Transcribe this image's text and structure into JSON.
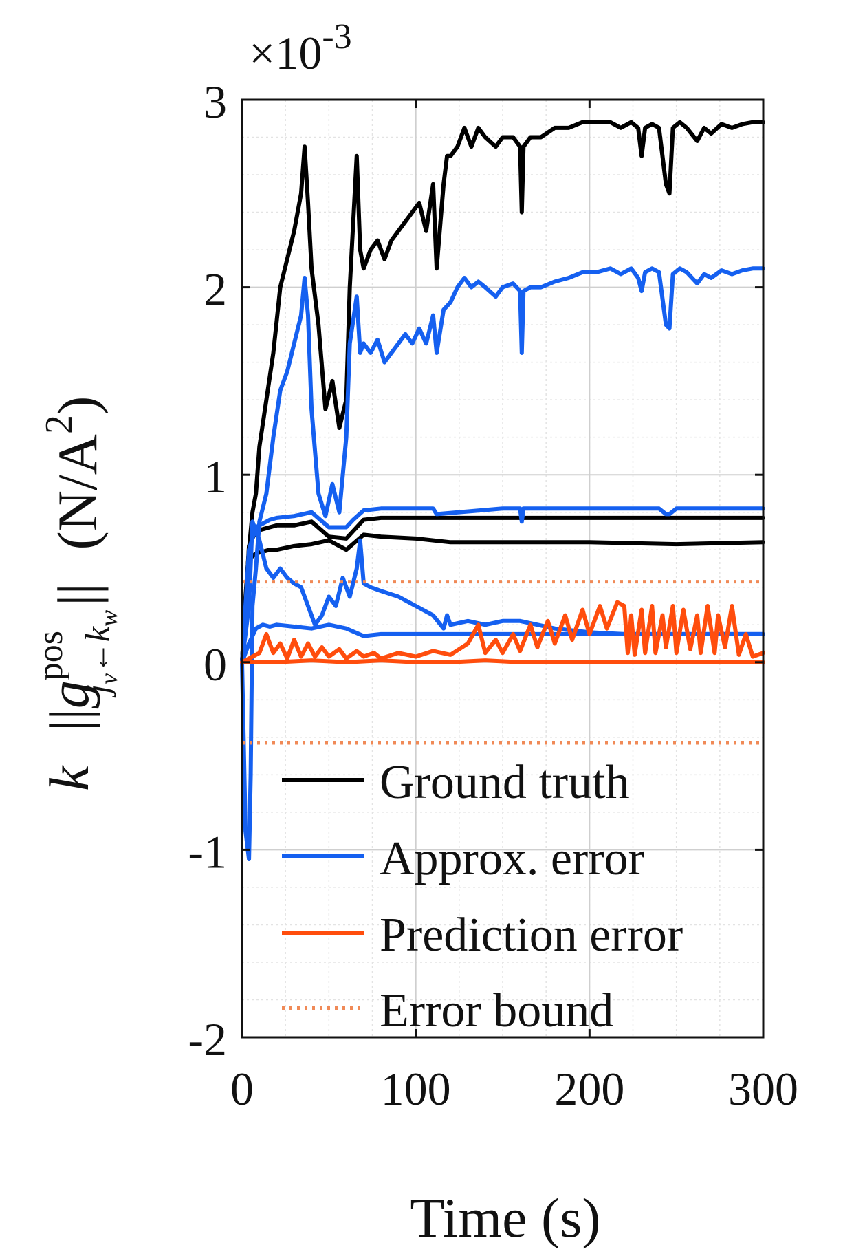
{
  "chart_data": {
    "type": "line",
    "title": "",
    "xlabel": "Time (s)",
    "ylabel_parts": {
      "k": "k",
      "bar_open": "||",
      "g": "g",
      "sup": "pos",
      "sub_j": "j",
      "sub_v": "v",
      "sub_arrow": "←",
      "sub_k": "k",
      "sub_w": "w",
      "bar_close": "||",
      "unit_open": "(N/A",
      "unit_sup": "2",
      "unit_close": ")"
    },
    "y_exponent": {
      "base": "×10",
      "power": "-3"
    },
    "xlim": [
      0,
      300
    ],
    "ylim": [
      -2,
      3
    ],
    "xticks": [
      0,
      100,
      200,
      300
    ],
    "yticks": [
      -2,
      -1,
      0,
      1,
      2,
      3
    ],
    "xtick_labels": [
      "0",
      "100",
      "200",
      "300"
    ],
    "ytick_labels": [
      "-2",
      "-1",
      "0",
      "1",
      "2",
      "3"
    ],
    "grid": true,
    "minor_grid": true,
    "legend_position": "bottom-right",
    "series": [
      {
        "name": "Ground truth",
        "color": "#000000",
        "style": "solid",
        "x": [
          0,
          2,
          4,
          6,
          8,
          10,
          14,
          18,
          22,
          26,
          30,
          34,
          36,
          38,
          40,
          44,
          48,
          52,
          56,
          60,
          62,
          66,
          68,
          70,
          74,
          78,
          82,
          86,
          90,
          94,
          98,
          102,
          106,
          110,
          112,
          116,
          118,
          120,
          124,
          128,
          132,
          136,
          140,
          146,
          150,
          156,
          160,
          161,
          162,
          166,
          172,
          180,
          188,
          196,
          204,
          212,
          218,
          224,
          228,
          230,
          232,
          236,
          240,
          244,
          246,
          248,
          252,
          256,
          262,
          266,
          270,
          276,
          282,
          288,
          294,
          300
        ],
        "y": [
          0.0,
          0.35,
          0.6,
          0.8,
          0.9,
          1.15,
          1.4,
          1.65,
          2.0,
          2.15,
          2.3,
          2.5,
          2.75,
          2.45,
          2.1,
          1.8,
          1.35,
          1.5,
          1.25,
          1.4,
          2.0,
          2.7,
          2.2,
          2.1,
          2.2,
          2.25,
          2.15,
          2.25,
          2.3,
          2.35,
          2.4,
          2.45,
          2.3,
          2.55,
          2.1,
          2.55,
          2.7,
          2.7,
          2.75,
          2.85,
          2.75,
          2.85,
          2.8,
          2.75,
          2.8,
          2.8,
          2.75,
          2.4,
          2.75,
          2.8,
          2.8,
          2.85,
          2.85,
          2.88,
          2.88,
          2.88,
          2.85,
          2.88,
          2.85,
          2.7,
          2.85,
          2.87,
          2.85,
          2.55,
          2.5,
          2.85,
          2.88,
          2.85,
          2.78,
          2.85,
          2.82,
          2.87,
          2.85,
          2.87,
          2.88,
          2.88
        ]
      },
      {
        "name": "",
        "color": "#000000",
        "style": "solid",
        "x": [
          0,
          4,
          8,
          12,
          16,
          20,
          30,
          40,
          50,
          60,
          64,
          70,
          80,
          100,
          150,
          200,
          250,
          300
        ],
        "y": [
          0.0,
          0.62,
          0.7,
          0.71,
          0.72,
          0.73,
          0.73,
          0.75,
          0.67,
          0.66,
          0.7,
          0.76,
          0.77,
          0.77,
          0.77,
          0.77,
          0.77,
          0.77
        ]
      },
      {
        "name": "",
        "color": "#000000",
        "style": "solid",
        "x": [
          0,
          4,
          8,
          12,
          16,
          20,
          30,
          40,
          50,
          60,
          70,
          80,
          100,
          120,
          150,
          200,
          250,
          300
        ],
        "y": [
          0.0,
          0.55,
          0.58,
          0.59,
          0.6,
          0.6,
          0.62,
          0.63,
          0.65,
          0.6,
          0.68,
          0.67,
          0.66,
          0.64,
          0.64,
          0.64,
          0.63,
          0.64
        ]
      },
      {
        "name": "Approx. error",
        "color": "#1560f0",
        "style": "solid",
        "x": [
          0,
          2,
          4,
          5,
          6,
          8,
          10,
          14,
          18,
          22,
          26,
          30,
          34,
          36,
          38,
          40,
          44,
          48,
          52,
          56,
          60,
          62,
          66,
          68,
          70,
          74,
          78,
          82,
          86,
          90,
          94,
          98,
          102,
          106,
          110,
          112,
          116,
          118,
          120,
          124,
          128,
          132,
          136,
          140,
          146,
          150,
          156,
          160,
          161,
          162,
          166,
          172,
          180,
          188,
          196,
          204,
          212,
          218,
          224,
          228,
          230,
          232,
          236,
          240,
          244,
          246,
          248,
          252,
          256,
          262,
          266,
          270,
          276,
          282,
          288,
          294,
          300
        ],
        "y": [
          0.0,
          -0.9,
          -1.05,
          -0.6,
          0.3,
          0.5,
          0.75,
          0.9,
          1.2,
          1.45,
          1.55,
          1.7,
          1.85,
          2.05,
          1.85,
          1.35,
          0.9,
          0.78,
          0.95,
          0.8,
          1.2,
          1.7,
          1.95,
          1.65,
          1.7,
          1.65,
          1.72,
          1.6,
          1.65,
          1.7,
          1.75,
          1.7,
          1.78,
          1.7,
          1.85,
          1.65,
          1.88,
          1.9,
          1.92,
          2.0,
          2.05,
          2.0,
          2.03,
          2.0,
          1.95,
          2.0,
          2.02,
          1.98,
          1.65,
          1.98,
          2.0,
          2.0,
          2.03,
          2.05,
          2.08,
          2.08,
          2.1,
          2.07,
          2.1,
          2.05,
          1.98,
          2.08,
          2.1,
          2.08,
          1.8,
          1.78,
          2.07,
          2.1,
          2.08,
          2.02,
          2.07,
          2.05,
          2.09,
          2.07,
          2.09,
          2.1,
          2.1
        ]
      },
      {
        "name": "",
        "color": "#1560f0",
        "style": "solid",
        "x": [
          0,
          4,
          8,
          12,
          16,
          20,
          30,
          40,
          50,
          60,
          64,
          70,
          80,
          100,
          110,
          112,
          150,
          160,
          161,
          162,
          200,
          230,
          240,
          244,
          246,
          250,
          300
        ],
        "y": [
          0.0,
          0.6,
          0.72,
          0.74,
          0.76,
          0.77,
          0.78,
          0.8,
          0.72,
          0.72,
          0.76,
          0.81,
          0.82,
          0.82,
          0.82,
          0.79,
          0.82,
          0.82,
          0.75,
          0.82,
          0.82,
          0.82,
          0.82,
          0.79,
          0.79,
          0.82,
          0.82
        ]
      },
      {
        "name": "",
        "color": "#1560f0",
        "style": "solid",
        "x": [
          0,
          4,
          6,
          10,
          14,
          18,
          22,
          26,
          30,
          34,
          38,
          42,
          46,
          50,
          54,
          58,
          62,
          66,
          68,
          70,
          74,
          80,
          90,
          100,
          110,
          116,
          118,
          120,
          130,
          140,
          150,
          160,
          180,
          200,
          220,
          240,
          260,
          280,
          300
        ],
        "y": [
          0.0,
          0.3,
          0.75,
          0.65,
          0.5,
          0.45,
          0.5,
          0.45,
          0.42,
          0.4,
          0.3,
          0.2,
          0.25,
          0.35,
          0.3,
          0.45,
          0.35,
          0.5,
          0.65,
          0.42,
          0.4,
          0.38,
          0.35,
          0.3,
          0.25,
          0.18,
          0.25,
          0.2,
          0.22,
          0.2,
          0.22,
          0.22,
          0.18,
          0.16,
          0.15,
          0.15,
          0.15,
          0.15,
          0.15
        ]
      },
      {
        "name": "",
        "color": "#1560f0",
        "style": "solid",
        "x": [
          0,
          4,
          8,
          12,
          16,
          20,
          30,
          40,
          50,
          60,
          70,
          80,
          100,
          150,
          200,
          250,
          300
        ],
        "y": [
          0.0,
          0.1,
          0.18,
          0.2,
          0.19,
          0.2,
          0.19,
          0.18,
          0.2,
          0.18,
          0.14,
          0.15,
          0.15,
          0.15,
          0.15,
          0.15,
          0.15
        ]
      },
      {
        "name": "Prediction error",
        "color": "#ff4d0d",
        "style": "solid",
        "x": [
          0,
          10,
          14,
          18,
          22,
          26,
          30,
          34,
          38,
          42,
          46,
          50,
          56,
          60,
          66,
          70,
          76,
          80,
          90,
          100,
          110,
          120,
          130,
          136,
          140,
          146,
          150,
          156,
          160,
          166,
          170,
          176,
          180,
          186,
          190,
          196,
          200,
          206,
          210,
          216,
          220,
          222,
          224,
          226,
          230,
          232,
          236,
          238,
          242,
          244,
          248,
          250,
          254,
          258,
          262,
          264,
          268,
          272,
          274,
          278,
          282,
          286,
          290,
          294,
          300
        ],
        "y": [
          0.0,
          0.05,
          0.15,
          0.05,
          0.1,
          0.02,
          0.12,
          0.03,
          0.1,
          0.03,
          0.08,
          0.03,
          0.07,
          0.02,
          0.06,
          0.03,
          0.05,
          0.02,
          0.05,
          0.03,
          0.06,
          0.04,
          0.1,
          0.2,
          0.05,
          0.12,
          0.05,
          0.15,
          0.06,
          0.2,
          0.08,
          0.22,
          0.1,
          0.25,
          0.12,
          0.28,
          0.15,
          0.3,
          0.18,
          0.32,
          0.3,
          0.05,
          0.25,
          0.04,
          0.28,
          0.05,
          0.3,
          0.05,
          0.25,
          0.08,
          0.3,
          0.05,
          0.28,
          0.07,
          0.25,
          0.05,
          0.3,
          0.05,
          0.25,
          0.08,
          0.3,
          0.04,
          0.15,
          0.03,
          0.05
        ]
      },
      {
        "name": "",
        "color": "#ff4d0d",
        "style": "solid",
        "x": [
          0,
          20,
          40,
          60,
          80,
          100,
          120,
          140,
          160,
          180,
          200,
          220,
          240,
          260,
          280,
          300
        ],
        "y": [
          0.0,
          0.0,
          0.01,
          0.0,
          0.01,
          0.0,
          0.0,
          0.01,
          0.0,
          0.0,
          0.0,
          0.0,
          0.0,
          0.0,
          0.0,
          0.0
        ]
      },
      {
        "name": "Error bound",
        "color": "#f08a57",
        "style": "dotted",
        "x": [
          0,
          300
        ],
        "y": [
          0.43,
          0.43
        ]
      },
      {
        "name": "",
        "color": "#f08a57",
        "style": "dotted",
        "x": [
          0,
          300
        ],
        "y": [
          -0.43,
          -0.43
        ]
      }
    ],
    "legend": [
      {
        "label": "Ground truth",
        "color": "#000000",
        "style": "solid"
      },
      {
        "label": "Approx. error",
        "color": "#1560f0",
        "style": "solid"
      },
      {
        "label": "Prediction error",
        "color": "#ff4d0d",
        "style": "solid"
      },
      {
        "label": "Error bound",
        "color": "#f08a57",
        "style": "dotted"
      }
    ]
  }
}
